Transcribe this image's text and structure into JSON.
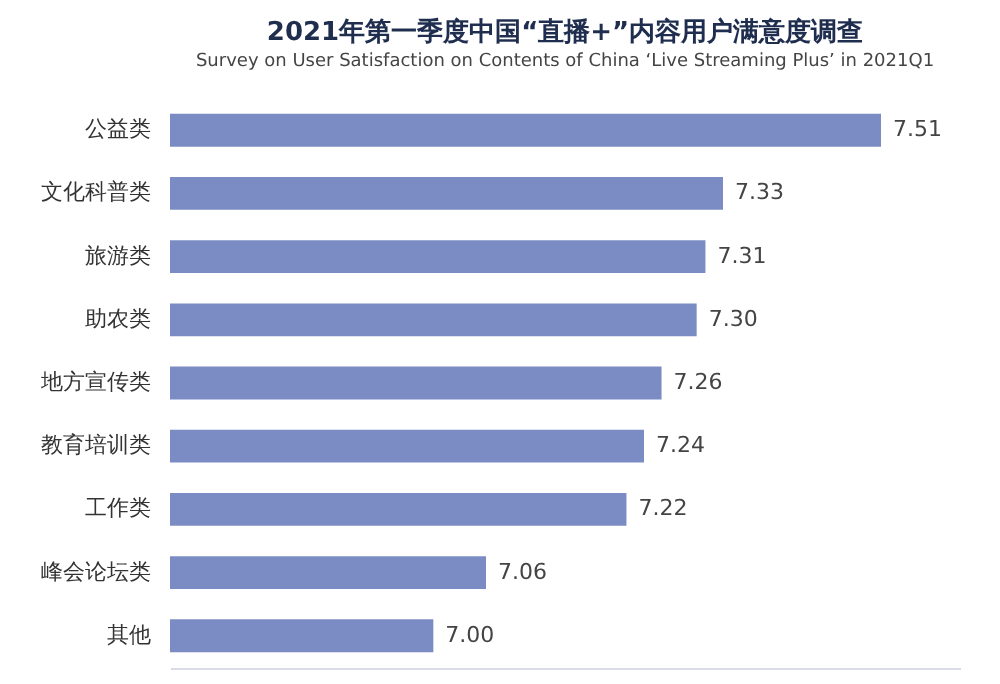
{
  "chart_data": {
    "type": "bar",
    "orientation": "horizontal",
    "title": "2021年第一季度中国“直播+”内容用户满意度调查",
    "subtitle": "Survey on User Satisfaction on Contents of China  ‘Live Streaming Plus’  in 2021Q1",
    "categories": [
      "公益类",
      "文化科普类",
      "旅游类",
      "助农类",
      "地方宣传类",
      "教育培训类",
      "工作类",
      "峰会论坛类",
      "其他"
    ],
    "values": [
      7.51,
      7.33,
      7.31,
      7.3,
      7.26,
      7.24,
      7.22,
      7.06,
      7.0
    ],
    "value_labels": [
      "7.51",
      "7.33",
      "7.31",
      "7.30",
      "7.26",
      "7.24",
      "7.22",
      "7.06",
      "7.00"
    ],
    "color": "#7b8cc4",
    "xlim": [
      6.7,
      7.6
    ],
    "tick_labels": "y"
  }
}
